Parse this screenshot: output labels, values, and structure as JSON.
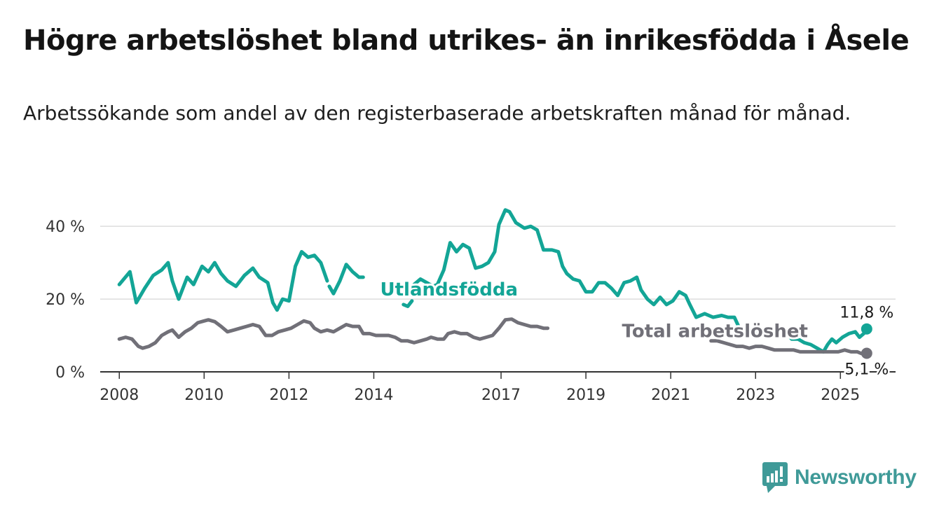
{
  "title": "Högre arbetslöshet bland utrikes- än inrikesfödda i Åsele",
  "subtitle": "Arbetssökande som andel av den registerbaserade arbetskraften månad för månad.",
  "brand": {
    "name": "Newsworthy"
  },
  "colors": {
    "utlandsfodda": "#13a596",
    "total": "#717078",
    "grid": "#dddddd",
    "axis": "#333333",
    "brand": "#3f9a98"
  },
  "chart_data": {
    "type": "line",
    "title": "Högre arbetslöshet bland utrikes- än inrikesfödda i Åsele",
    "subtitle": "Arbetssökande som andel av den registerbaserade arbetskraften månad för månad.",
    "xlabel": "",
    "ylabel": "",
    "x_ticks": [
      "2008",
      "2010",
      "2012",
      "2014",
      "2017",
      "2019",
      "2021",
      "2023",
      "2025"
    ],
    "x_tick_values": [
      2008.0,
      2010.0,
      2012.0,
      2014.0,
      2017.0,
      2019.0,
      2021.0,
      2023.0,
      2025.0
    ],
    "xlim": [
      2007.55,
      2026.3
    ],
    "y_ticks": [
      "0 %",
      "20 %",
      "40 %"
    ],
    "y_tick_values": [
      0,
      20,
      40
    ],
    "ylim": [
      0,
      46
    ],
    "grid": true,
    "series": [
      {
        "name": "Utlandsfödda",
        "color": "#13a596",
        "points": [
          [
            2008.0,
            24
          ],
          [
            2008.25,
            27.5
          ],
          [
            2008.4,
            19
          ],
          [
            2008.6,
            23
          ],
          [
            2008.8,
            26.5
          ],
          [
            2009.0,
            28
          ],
          [
            2009.15,
            30
          ],
          [
            2009.25,
            25
          ],
          [
            2009.4,
            20
          ],
          [
            2009.6,
            26
          ],
          [
            2009.75,
            24
          ],
          [
            2009.95,
            29
          ],
          [
            2010.1,
            27.5
          ],
          [
            2010.25,
            30
          ],
          [
            2010.4,
            27
          ],
          [
            2010.55,
            25
          ],
          [
            2010.75,
            23.5
          ],
          [
            2010.95,
            26.5
          ],
          [
            2011.15,
            28.5
          ],
          [
            2011.3,
            26
          ],
          [
            2011.5,
            24.5
          ],
          [
            2011.62,
            19
          ],
          [
            2011.72,
            17
          ],
          [
            2011.85,
            20
          ],
          [
            2012.0,
            19.5
          ],
          [
            2012.15,
            29
          ],
          [
            2012.3,
            33
          ],
          [
            2012.45,
            31.5
          ],
          [
            2012.6,
            32
          ],
          [
            2012.75,
            30
          ],
          [
            2012.9,
            25
          ],
          null,
          [
            2012.95,
            23.5
          ],
          [
            2013.05,
            21.5
          ],
          [
            2013.2,
            25
          ],
          [
            2013.35,
            29.5
          ],
          [
            2013.5,
            27.5
          ],
          [
            2013.65,
            26
          ],
          [
            2013.75,
            26
          ],
          null,
          [
            2014.7,
            18.5
          ],
          [
            2014.8,
            18
          ],
          [
            2014.9,
            19.5
          ],
          null,
          [
            2014.95,
            24
          ],
          [
            2015.1,
            25.5
          ],
          [
            2015.25,
            24.5
          ],
          [
            2015.4,
            23.5
          ],
          [
            2015.5,
            24
          ],
          [
            2015.65,
            28
          ],
          [
            2015.8,
            35.5
          ],
          [
            2015.95,
            33
          ],
          [
            2016.1,
            35
          ],
          [
            2016.25,
            34
          ],
          [
            2016.4,
            28.5
          ],
          [
            2016.55,
            29
          ],
          [
            2016.7,
            30
          ],
          [
            2016.85,
            33
          ],
          [
            2016.95,
            40.5
          ],
          [
            2017.1,
            44.5
          ],
          [
            2017.2,
            44
          ],
          [
            2017.35,
            41
          ],
          [
            2017.55,
            39.5
          ],
          [
            2017.7,
            40
          ],
          [
            2017.85,
            39
          ],
          [
            2018.0,
            33.5
          ],
          [
            2018.2,
            33.5
          ],
          [
            2018.35,
            33
          ],
          [
            2018.45,
            29
          ],
          [
            2018.55,
            27
          ],
          [
            2018.7,
            25.5
          ],
          [
            2018.85,
            25
          ],
          [
            2019.0,
            22
          ],
          [
            2019.15,
            22
          ],
          [
            2019.3,
            24.5
          ],
          [
            2019.45,
            24.5
          ],
          [
            2019.6,
            23
          ],
          [
            2019.75,
            21
          ],
          [
            2019.9,
            24.5
          ],
          [
            2020.05,
            25
          ],
          [
            2020.2,
            26
          ],
          [
            2020.3,
            22.5
          ],
          [
            2020.45,
            20
          ],
          [
            2020.6,
            18.5
          ],
          [
            2020.75,
            20.5
          ],
          [
            2020.9,
            18.5
          ],
          [
            2021.05,
            19.5
          ],
          [
            2021.2,
            22
          ],
          [
            2021.35,
            21
          ],
          [
            2021.45,
            18.5
          ],
          [
            2021.6,
            15
          ],
          [
            2021.8,
            16
          ],
          [
            2022.0,
            15
          ],
          [
            2022.2,
            15.5
          ],
          [
            2022.35,
            15
          ],
          [
            2022.5,
            15
          ],
          [
            2022.6,
            12.5
          ],
          [
            2022.75,
            11
          ],
          [
            2022.9,
            10.5
          ],
          [
            2023.05,
            11.5
          ],
          [
            2023.2,
            11.5
          ],
          [
            2023.3,
            10.5
          ],
          [
            2023.45,
            12
          ],
          [
            2023.6,
            10.5
          ],
          [
            2023.75,
            10.5
          ],
          [
            2023.85,
            9
          ],
          [
            2024.0,
            9
          ],
          [
            2024.15,
            8
          ],
          [
            2024.3,
            7.5
          ],
          [
            2024.45,
            6.5
          ],
          [
            2024.6,
            5.5
          ],
          [
            2024.7,
            7.5
          ],
          [
            2024.8,
            9
          ],
          [
            2024.9,
            8
          ],
          [
            2025.05,
            9.5
          ],
          [
            2025.2,
            10.5
          ],
          [
            2025.35,
            11
          ],
          [
            2025.45,
            9.5
          ],
          [
            2025.55,
            10.5
          ],
          [
            2025.62,
            11.8
          ]
        ],
        "end_value": 11.8,
        "end_label": "11,8 %"
      },
      {
        "name": "Total arbetslöshet",
        "color": "#717078",
        "points": [
          [
            2008.0,
            9
          ],
          [
            2008.15,
            9.5
          ],
          [
            2008.3,
            9
          ],
          [
            2008.45,
            7
          ],
          [
            2008.55,
            6.5
          ],
          [
            2008.7,
            7
          ],
          [
            2008.85,
            8
          ],
          [
            2009.0,
            10
          ],
          [
            2009.15,
            11
          ],
          [
            2009.25,
            11.5
          ],
          [
            2009.4,
            9.5
          ],
          [
            2009.55,
            11
          ],
          [
            2009.7,
            12
          ],
          [
            2009.85,
            13.5
          ],
          [
            2010.0,
            14
          ],
          [
            2010.1,
            14.3
          ],
          [
            2010.25,
            13.8
          ],
          [
            2010.4,
            12.5
          ],
          [
            2010.55,
            11
          ],
          [
            2010.7,
            11.5
          ],
          [
            2010.85,
            12
          ],
          [
            2011.0,
            12.5
          ],
          [
            2011.15,
            13
          ],
          [
            2011.3,
            12.5
          ],
          [
            2011.45,
            10
          ],
          [
            2011.6,
            10
          ],
          [
            2011.75,
            11
          ],
          [
            2011.9,
            11.5
          ],
          [
            2012.05,
            12
          ],
          [
            2012.2,
            13
          ],
          [
            2012.35,
            14
          ],
          [
            2012.5,
            13.5
          ],
          [
            2012.6,
            12
          ],
          [
            2012.75,
            11
          ],
          [
            2012.9,
            11.5
          ],
          [
            2013.05,
            11
          ],
          [
            2013.2,
            12
          ],
          [
            2013.35,
            13
          ],
          [
            2013.5,
            12.5
          ],
          [
            2013.65,
            12.5
          ],
          [
            2013.75,
            10.5
          ],
          [
            2013.9,
            10.5
          ],
          [
            2014.05,
            10
          ],
          [
            2014.2,
            10
          ],
          [
            2014.35,
            10
          ],
          [
            2014.5,
            9.5
          ],
          [
            2014.65,
            8.5
          ],
          [
            2014.8,
            8.5
          ],
          [
            2014.95,
            8
          ],
          [
            2015.1,
            8.5
          ],
          [
            2015.25,
            9
          ],
          [
            2015.35,
            9.5
          ],
          [
            2015.5,
            9
          ],
          [
            2015.65,
            9
          ],
          [
            2015.75,
            10.5
          ],
          [
            2015.9,
            11
          ],
          [
            2016.05,
            10.5
          ],
          [
            2016.2,
            10.5
          ],
          [
            2016.35,
            9.5
          ],
          [
            2016.5,
            9
          ],
          [
            2016.65,
            9.5
          ],
          [
            2016.8,
            10
          ],
          [
            2016.95,
            12
          ],
          [
            2017.1,
            14.3
          ],
          [
            2017.25,
            14.5
          ],
          [
            2017.4,
            13.5
          ],
          [
            2017.55,
            13
          ],
          [
            2017.7,
            12.5
          ],
          [
            2017.85,
            12.5
          ],
          [
            2018.0,
            12
          ],
          [
            2018.1,
            12
          ],
          null,
          [
            2021.95,
            8.5
          ],
          [
            2022.1,
            8.5
          ],
          [
            2022.25,
            8
          ],
          [
            2022.4,
            7.5
          ],
          [
            2022.55,
            7
          ],
          [
            2022.7,
            7
          ],
          [
            2022.85,
            6.5
          ],
          [
            2023.0,
            7
          ],
          [
            2023.15,
            7
          ],
          [
            2023.3,
            6.5
          ],
          [
            2023.45,
            6
          ],
          [
            2023.6,
            6
          ],
          [
            2023.75,
            6
          ],
          [
            2023.9,
            6
          ],
          [
            2024.05,
            5.5
          ],
          [
            2024.2,
            5.5
          ],
          [
            2024.35,
            5.5
          ],
          [
            2024.5,
            5.5
          ],
          [
            2024.65,
            5.5
          ],
          [
            2024.8,
            5.5
          ],
          [
            2024.95,
            5.5
          ],
          [
            2025.1,
            6
          ],
          [
            2025.25,
            5.5
          ],
          [
            2025.4,
            5.5
          ],
          [
            2025.5,
            5
          ],
          [
            2025.62,
            5.1
          ]
        ],
        "end_value": 5.1,
        "end_label": "5,1 %"
      }
    ],
    "series_label_anchors": [
      {
        "series": 0,
        "x": 2014.15,
        "y": 21,
        "text": "Utlandsfödda"
      },
      {
        "series": 1,
        "x": 2019.85,
        "y": 9.5,
        "text": "Total arbetslöshet"
      }
    ]
  }
}
